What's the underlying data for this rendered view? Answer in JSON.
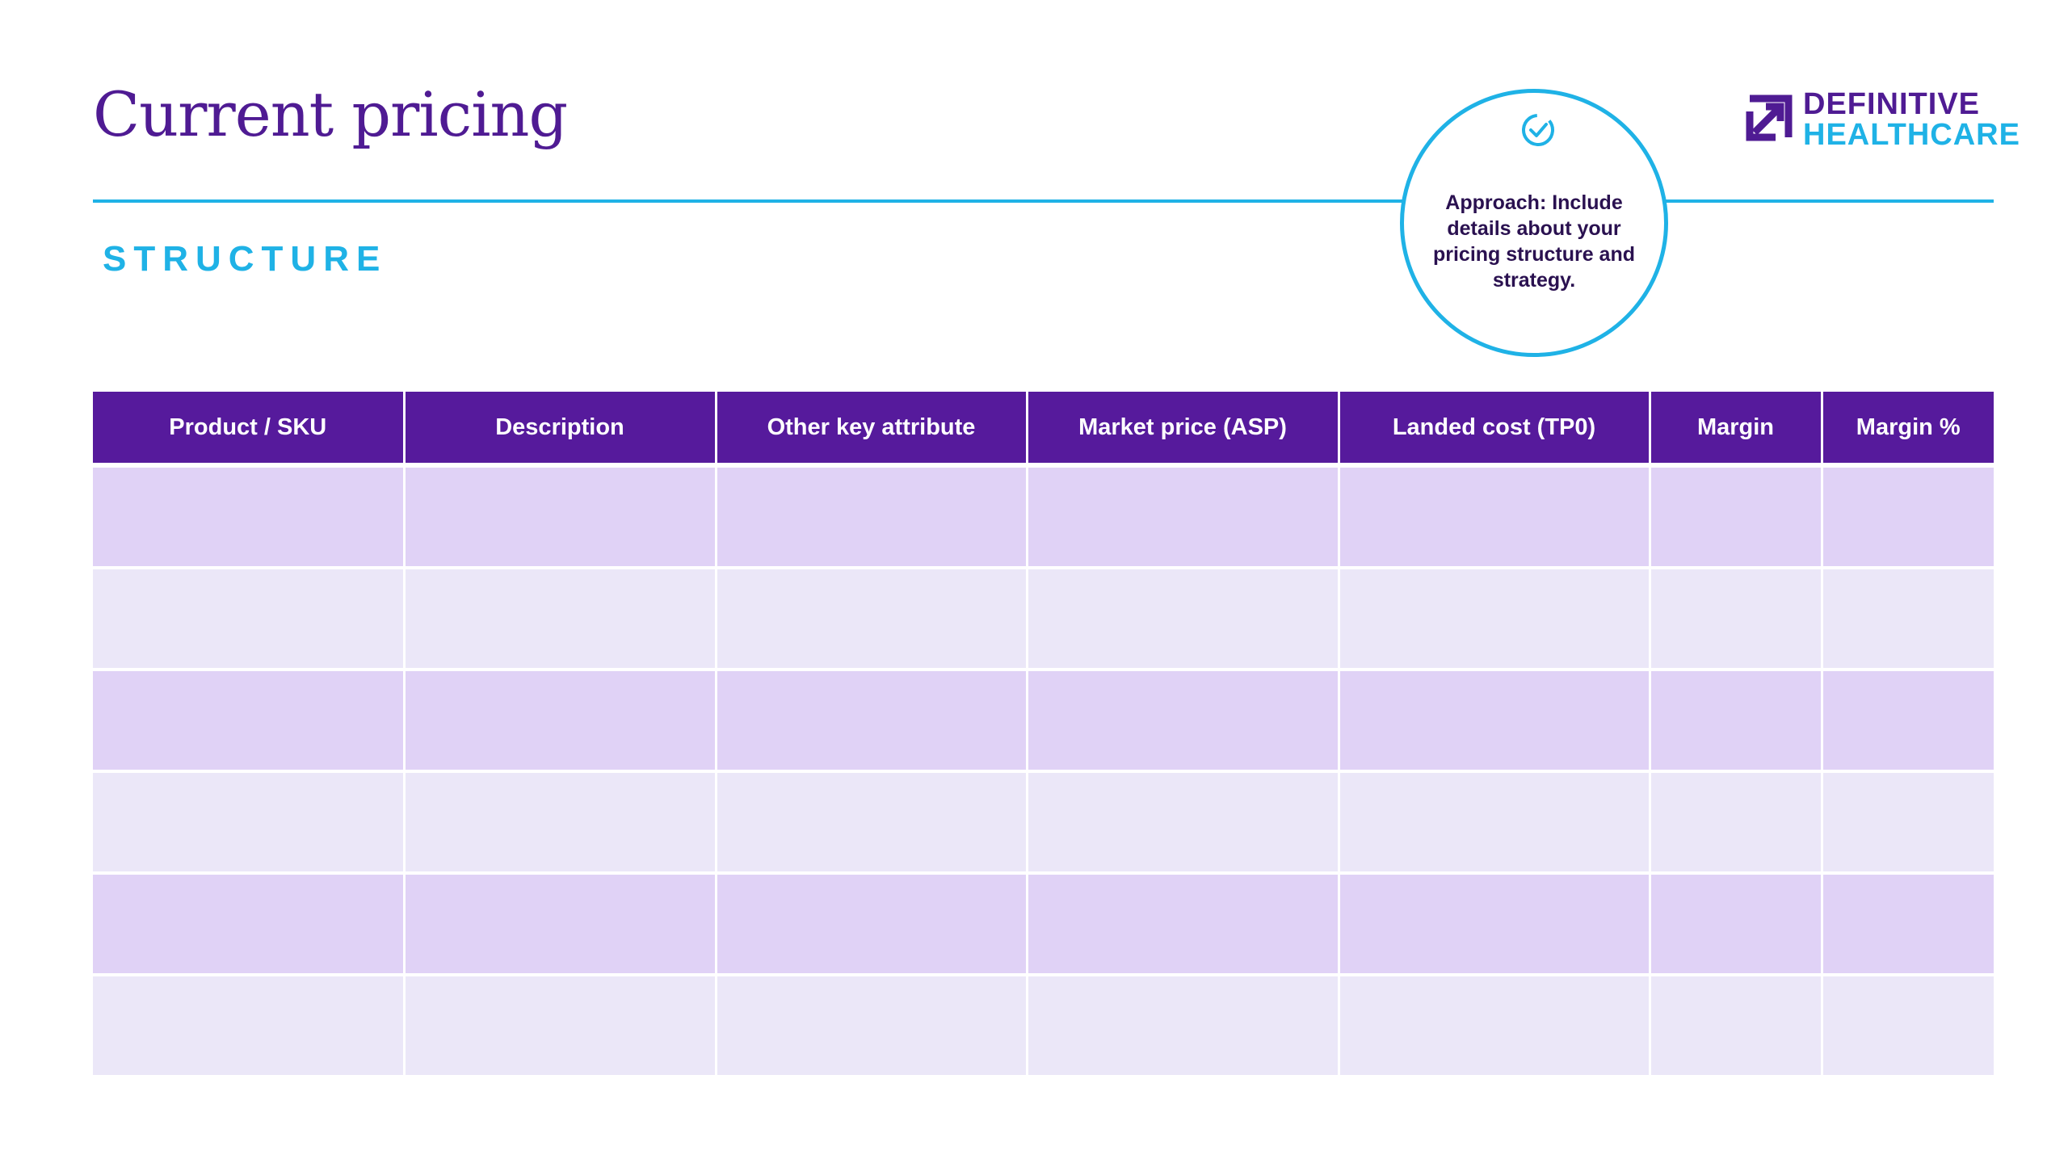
{
  "page": {
    "title": "Current pricing",
    "subtitle": "STRUCTURE"
  },
  "callout": {
    "icon": "check-circle-icon",
    "text": "Approach: Include details about your pricing structure and strategy."
  },
  "logo": {
    "line1": "DEFINITIVE",
    "line2": "HEALTHCARE",
    "icon": "arrow-square-icon"
  },
  "colors": {
    "purple": "#561a9c",
    "title_purple": "#4f1b93",
    "cyan": "#1fb2e6",
    "row_dark": "#e0d2f6",
    "row_light": "#ebe7f8"
  },
  "table": {
    "columns": [
      "Product / SKU",
      "Description",
      "Other key attribute",
      "Market price (ASP)",
      "Landed cost (TP0)",
      "Margin",
      "Margin %"
    ],
    "rows": [
      [
        "",
        "",
        "",
        "",
        "",
        "",
        ""
      ],
      [
        "",
        "",
        "",
        "",
        "",
        "",
        ""
      ],
      [
        "",
        "",
        "",
        "",
        "",
        "",
        ""
      ],
      [
        "",
        "",
        "",
        "",
        "",
        "",
        ""
      ],
      [
        "",
        "",
        "",
        "",
        "",
        "",
        ""
      ],
      [
        "",
        "",
        "",
        "",
        "",
        "",
        ""
      ]
    ]
  }
}
